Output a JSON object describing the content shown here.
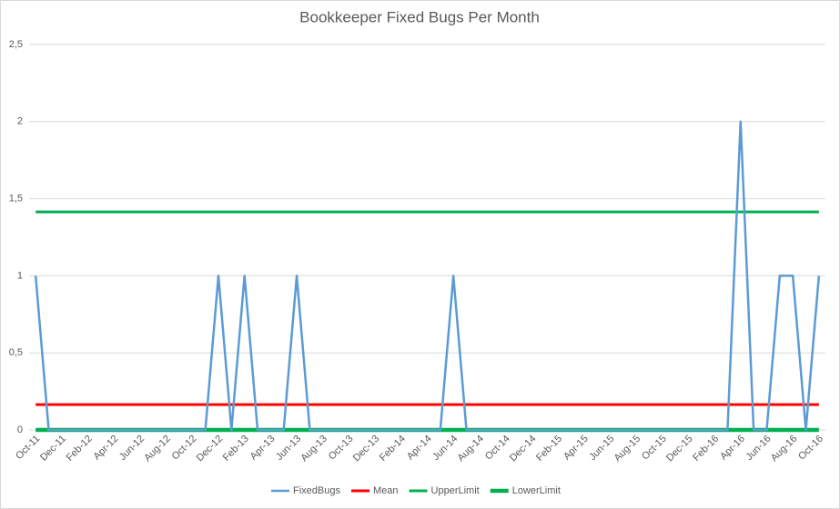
{
  "chart_data": {
    "type": "line",
    "title": "Bookkeeper Fixed Bugs Per Month",
    "categories": [
      "Oct-11",
      null,
      "Dec-11",
      null,
      "Feb-12",
      null,
      "Apr-12",
      null,
      "Jun-12",
      null,
      "Aug-12",
      null,
      "Oct-12",
      null,
      "Dec-12",
      null,
      "Feb-13",
      null,
      "Apr-13",
      null,
      "Jun-13",
      null,
      "Aug-13",
      null,
      "Oct-13",
      null,
      "Dec-13",
      null,
      "Feb-14",
      null,
      "Apr-14",
      null,
      "Jun-14",
      null,
      "Aug-14",
      null,
      "Oct-14",
      null,
      "Dec-14",
      null,
      "Feb-15",
      null,
      "Apr-15",
      null,
      "Jun-15",
      null,
      "Aug-15",
      null,
      "Oct-15",
      null,
      "Dec-15",
      null,
      "Feb-16",
      null,
      "Apr-16",
      null,
      "Jun-16",
      null,
      "Aug-16",
      null,
      "Oct-16"
    ],
    "series": [
      {
        "name": "FixedBugs",
        "color": "#5b9bd5",
        "width": 2.5,
        "values": [
          1,
          0,
          0,
          0,
          0,
          0,
          0,
          0,
          0,
          0,
          0,
          0,
          0,
          0,
          1,
          0,
          1,
          0,
          0,
          0,
          1,
          0,
          0,
          0,
          0,
          0,
          0,
          0,
          0,
          0,
          0,
          0,
          1,
          0,
          0,
          0,
          0,
          0,
          0,
          0,
          0,
          0,
          0,
          0,
          0,
          0,
          0,
          0,
          0,
          0,
          0,
          0,
          0,
          0,
          2,
          0,
          0,
          1,
          1,
          0,
          1
        ]
      },
      {
        "name": "Mean",
        "color": "#ff0000",
        "width": 3,
        "values": [
          0.164,
          0.164,
          0.164,
          0.164,
          0.164,
          0.164,
          0.164,
          0.164,
          0.164,
          0.164,
          0.164,
          0.164,
          0.164,
          0.164,
          0.164,
          0.164,
          0.164,
          0.164,
          0.164,
          0.164,
          0.164,
          0.164,
          0.164,
          0.164,
          0.164,
          0.164,
          0.164,
          0.164,
          0.164,
          0.164,
          0.164,
          0.164,
          0.164,
          0.164,
          0.164,
          0.164,
          0.164,
          0.164,
          0.164,
          0.164,
          0.164,
          0.164,
          0.164,
          0.164,
          0.164,
          0.164,
          0.164,
          0.164,
          0.164,
          0.164,
          0.164,
          0.164,
          0.164,
          0.164,
          0.164,
          0.164,
          0.164,
          0.164,
          0.164,
          0.164,
          0.164
        ]
      },
      {
        "name": "UpperLimit",
        "color": "#00b050",
        "width": 3,
        "values": [
          1.414,
          1.414,
          1.414,
          1.414,
          1.414,
          1.414,
          1.414,
          1.414,
          1.414,
          1.414,
          1.414,
          1.414,
          1.414,
          1.414,
          1.414,
          1.414,
          1.414,
          1.414,
          1.414,
          1.414,
          1.414,
          1.414,
          1.414,
          1.414,
          1.414,
          1.414,
          1.414,
          1.414,
          1.414,
          1.414,
          1.414,
          1.414,
          1.414,
          1.414,
          1.414,
          1.414,
          1.414,
          1.414,
          1.414,
          1.414,
          1.414,
          1.414,
          1.414,
          1.414,
          1.414,
          1.414,
          1.414,
          1.414,
          1.414,
          1.414,
          1.414,
          1.414,
          1.414,
          1.414,
          1.414,
          1.414,
          1.414,
          1.414,
          1.414,
          1.414,
          1.414
        ]
      },
      {
        "name": "LowerLimit",
        "color": "#00b050",
        "width": 4.5,
        "values": [
          0,
          0,
          0,
          0,
          0,
          0,
          0,
          0,
          0,
          0,
          0,
          0,
          0,
          0,
          0,
          0,
          0,
          0,
          0,
          0,
          0,
          0,
          0,
          0,
          0,
          0,
          0,
          0,
          0,
          0,
          0,
          0,
          0,
          0,
          0,
          0,
          0,
          0,
          0,
          0,
          0,
          0,
          0,
          0,
          0,
          0,
          0,
          0,
          0,
          0,
          0,
          0,
          0,
          0,
          0,
          0,
          0,
          0,
          0,
          0,
          0
        ]
      }
    ],
    "ylim": [
      0,
      2.5
    ],
    "yticks": [
      0,
      {
        "value": 0.5,
        "label": "0,5"
      },
      1,
      {
        "value": 1.5,
        "label": "1,5"
      },
      2,
      {
        "value": 2.5,
        "label": "2,5"
      }
    ],
    "grid": true,
    "legend": "bottom"
  }
}
